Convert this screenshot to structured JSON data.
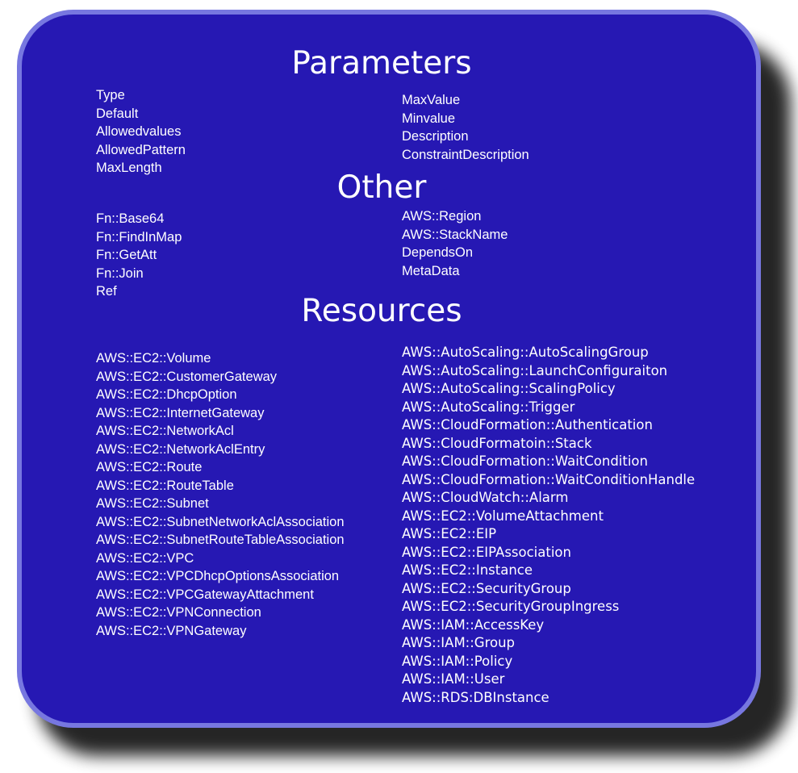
{
  "parameters": {
    "title": "Parameters",
    "left": [
      "Type",
      "Default",
      "Allowedvalues",
      "AllowedPattern",
      "MaxLength"
    ],
    "right": [
      "MaxValue",
      "Minvalue",
      "Description",
      "ConstraintDescription"
    ]
  },
  "other": {
    "title": "Other",
    "left": [
      "Fn::Base64",
      "Fn::FindInMap",
      "Fn::GetAtt",
      "Fn::Join",
      "Ref"
    ],
    "right": [
      "AWS::Region",
      "AWS::StackName",
      "DependsOn",
      "MetaData"
    ]
  },
  "resources": {
    "title": "Resources",
    "left": [
      "AWS::EC2::Volume",
      "AWS::EC2::CustomerGateway",
      "AWS::EC2::DhcpOption",
      "AWS::EC2::InternetGateway",
      "AWS::EC2::NetworkAcl",
      "AWS::EC2::NetworkAclEntry",
      "AWS::EC2::Route",
      "AWS::EC2::RouteTable",
      "AWS::EC2::Subnet",
      "AWS::EC2::SubnetNetworkAclAssociation",
      "AWS::EC2::SubnetRouteTableAssociation",
      "AWS::EC2::VPC",
      "AWS::EC2::VPCDhcpOptionsAssociation",
      "AWS::EC2::VPCGatewayAttachment",
      "AWS::EC2::VPNConnection",
      "AWS::EC2::VPNGateway"
    ],
    "right": [
      "AWS::AutoScaling::AutoScalingGroup",
      "AWS::AutoScaling::LaunchConfiguraiton",
      "AWS::AutoScaling::ScalingPolicy",
      "AWS::AutoScaling::Trigger",
      "AWS::CloudFormation::Authentication",
      "AWS::CloudFormatoin::Stack",
      "AWS::CloudFormation::WaitCondition",
      "AWS::CloudFormation::WaitConditionHandle",
      "AWS::CloudWatch::Alarm",
      "AWS::EC2::VolumeAttachment",
      "AWS::EC2::EIP",
      "AWS::EC2::EIPAssociation",
      "AWS::EC2::Instance",
      "AWS::EC2::SecurityGroup",
      "AWS::EC2::SecurityGroupIngress",
      "AWS::IAM::AccessKey",
      "AWS::IAM::Group",
      "AWS::IAM::Policy",
      "AWS::IAM::User",
      "AWS::RDS:DBInstance"
    ]
  },
  "colors": {
    "panel_fill": "#2618b3",
    "panel_border": "#7777e0",
    "text": "#ffffff",
    "shadow": "#000000"
  }
}
